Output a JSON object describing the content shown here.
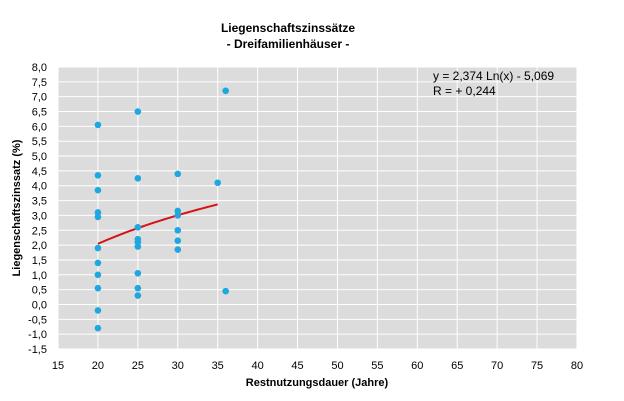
{
  "colors": {
    "plot_background": "#dcdcdc",
    "grid": "#ffffff",
    "points": "#1ea7e1",
    "trendline": "#d41414"
  },
  "chart_data": {
    "type": "scatter",
    "title": "Liegenschaftszinssätze",
    "subtitle": "- Dreifamilienhäuser -",
    "xlabel": "Restnutzungsdauer (Jahre)",
    "ylabel": "Liegenschaftszinssatz (%)",
    "xlim": [
      15,
      80
    ],
    "ylim": [
      -1.5,
      8.0
    ],
    "x_ticks": [
      "15",
      "20",
      "25",
      "30",
      "35",
      "40",
      "45",
      "50",
      "55",
      "60",
      "65",
      "70",
      "75",
      "80"
    ],
    "y_ticks": [
      "8,0",
      "7,5",
      "7,0",
      "6,5",
      "6,0",
      "5,5",
      "5,0",
      "4,5",
      "4,0",
      "3,5",
      "3,0",
      "2,5",
      "2,0",
      "1,5",
      "1,0",
      "0,5",
      "0,0",
      "-0,5",
      "-1,0",
      "-1,5"
    ],
    "grid": true,
    "points": [
      {
        "x": 20,
        "y": 6.05
      },
      {
        "x": 20,
        "y": 4.35
      },
      {
        "x": 20,
        "y": 3.85
      },
      {
        "x": 20,
        "y": 3.1
      },
      {
        "x": 20,
        "y": 2.95
      },
      {
        "x": 20,
        "y": 1.9
      },
      {
        "x": 20,
        "y": 1.4
      },
      {
        "x": 20,
        "y": 1.0
      },
      {
        "x": 20,
        "y": 0.55
      },
      {
        "x": 20,
        "y": -0.2
      },
      {
        "x": 20,
        "y": -0.8
      },
      {
        "x": 25,
        "y": 6.5
      },
      {
        "x": 25,
        "y": 4.25
      },
      {
        "x": 25,
        "y": 2.6
      },
      {
        "x": 25,
        "y": 2.2
      },
      {
        "x": 25,
        "y": 2.1
      },
      {
        "x": 25,
        "y": 1.95
      },
      {
        "x": 25,
        "y": 1.05
      },
      {
        "x": 25,
        "y": 0.55
      },
      {
        "x": 25,
        "y": 0.3
      },
      {
        "x": 30,
        "y": 4.4
      },
      {
        "x": 30,
        "y": 3.15
      },
      {
        "x": 30,
        "y": 3.0
      },
      {
        "x": 30,
        "y": 2.5
      },
      {
        "x": 30,
        "y": 2.15
      },
      {
        "x": 30,
        "y": 1.85
      },
      {
        "x": 35,
        "y": 4.1
      },
      {
        "x": 36,
        "y": 7.2
      },
      {
        "x": 36,
        "y": 0.45
      }
    ],
    "trendline": {
      "equation": "y = 2,374 Ln(x) - 5,069",
      "r_value": "R = + 0,244",
      "a": 2.374,
      "b": -5.069,
      "x_range": [
        20,
        35
      ]
    }
  }
}
